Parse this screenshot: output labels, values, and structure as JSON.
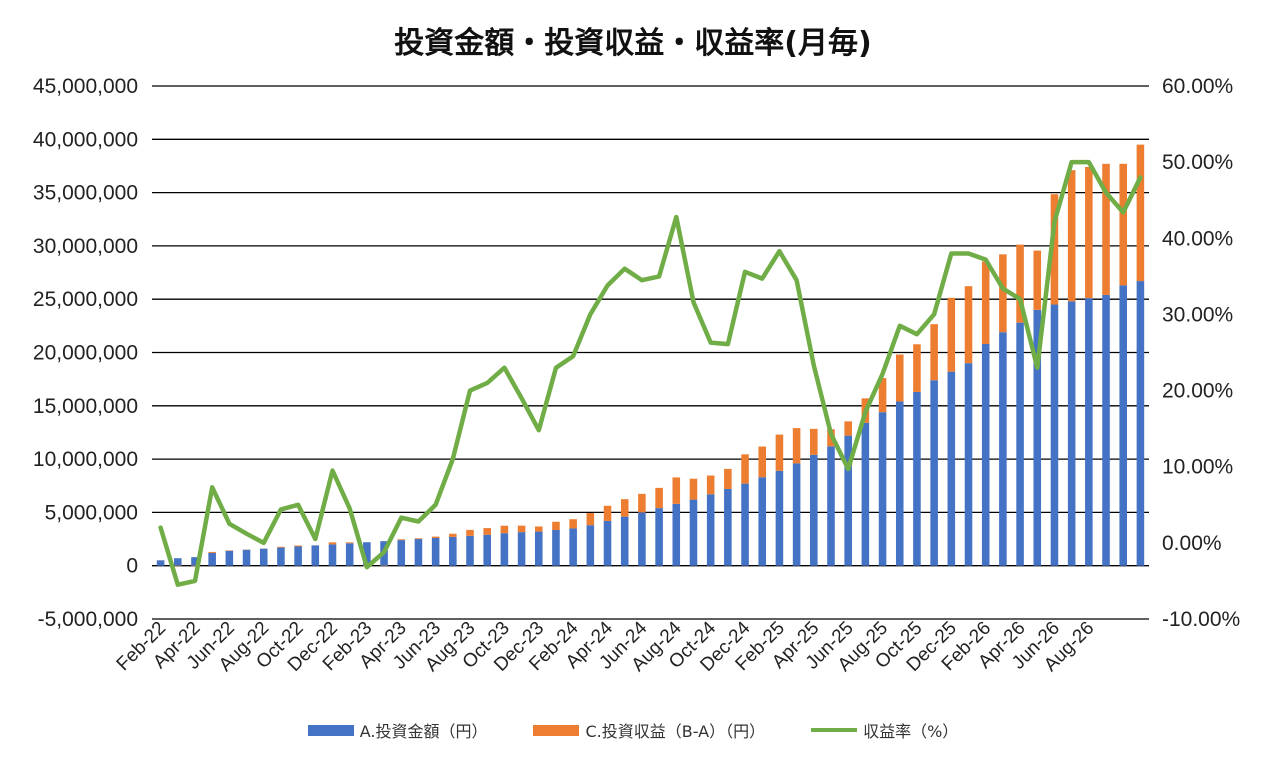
{
  "chart_data": {
    "type": "bar",
    "title": "投資金額・投資収益・収益率(月毎)",
    "categories": [
      "Feb-22",
      "Mar-22",
      "Apr-22",
      "May-22",
      "Jun-22",
      "Jul-22",
      "Aug-22",
      "Sep-22",
      "Oct-22",
      "Nov-22",
      "Dec-22",
      "Jan-23",
      "Feb-23",
      "Mar-23",
      "Apr-23",
      "May-23",
      "Jun-23",
      "Jul-23",
      "Aug-23",
      "Sep-23",
      "Oct-23",
      "Nov-23",
      "Dec-23",
      "Jan-24",
      "Feb-24",
      "Mar-24",
      "Apr-24",
      "May-24",
      "Jun-24",
      "Jul-24",
      "Aug-24",
      "Sep-24",
      "Oct-24",
      "Nov-24",
      "Dec-24",
      "Jan-25",
      "Feb-25",
      "Mar-25",
      "Apr-25",
      "May-25",
      "Jun-25",
      "Jul-25",
      "Aug-25",
      "Sep-25",
      "Oct-25",
      "Nov-25",
      "Dec-25",
      "Jan-26",
      "Feb-26",
      "Mar-26",
      "Apr-26",
      "May-26",
      "Jun-26",
      "Jul-26",
      "Aug-26",
      "Sep-26",
      "Oct-26",
      "Nov-26"
    ],
    "x_tick_labels": [
      "Feb-22",
      "Apr-22",
      "Jun-22",
      "Aug-22",
      "Oct-22",
      "Dec-22",
      "Feb-23",
      "Apr-23",
      "Jun-23",
      "Aug-23",
      "Oct-23",
      "Dec-23",
      "Feb-24",
      "Apr-24",
      "Jun-24",
      "Aug-24",
      "Oct-24",
      "Dec-24",
      "Feb-25",
      "Apr-25",
      "Jun-25",
      "Aug-25",
      "Oct-25",
      "Dec-25",
      "Feb-26",
      "Apr-26",
      "Jun-26",
      "Aug-26"
    ],
    "y_left_ticks": [
      "45,000,000",
      "40,000,000",
      "35,000,000",
      "30,000,000",
      "25,000,000",
      "20,000,000",
      "15,000,000",
      "10,000,000",
      "5,000,000",
      "0",
      "-5,000,000"
    ],
    "y_right_ticks": [
      "60.00%",
      "50.00%",
      "40.00%",
      "30.00%",
      "20.00%",
      "10.00%",
      "0.00%",
      "-10.00%"
    ],
    "ylim_left": [
      -5000000,
      45000000
    ],
    "ylim_right": [
      -0.1,
      0.6
    ],
    "grid": true,
    "legend_position": "bottom",
    "series": [
      {
        "name": "A.投資金額（円）",
        "type": "bar",
        "axis": "left",
        "color": "#4472c4",
        "stack": "s1",
        "values": [
          500000,
          700000,
          800000,
          1200000,
          1400000,
          1500000,
          1600000,
          1700000,
          1800000,
          1900000,
          2000000,
          2100000,
          2200000,
          2300000,
          2400000,
          2500000,
          2600000,
          2700000,
          2800000,
          2900000,
          3050000,
          3150000,
          3200000,
          3350000,
          3500000,
          3800000,
          4200000,
          4600000,
          5000000,
          5400000,
          5800000,
          6200000,
          6700000,
          7200000,
          7700000,
          8300000,
          8900000,
          9600000,
          10400000,
          11200000,
          12200000,
          13400000,
          14400000,
          15400000,
          16300000,
          17400000,
          18200000,
          19000000,
          20800000,
          21900000,
          22800000,
          24000000,
          24500000,
          24800000,
          25100000,
          25400000,
          26300000,
          26700000
        ]
      },
      {
        "name": "C.投資収益（B-A）（円）",
        "type": "bar",
        "axis": "left",
        "color": "#ed7d31",
        "stack": "s1",
        "values": [
          10000,
          -40000,
          -40000,
          90000,
          40000,
          20000,
          10000,
          70000,
          90000,
          10000,
          190000,
          90000,
          -70000,
          -30000,
          80000,
          70000,
          130000,
          300000,
          560000,
          630000,
          700000,
          610000,
          480000,
          770000,
          860000,
          1140000,
          1420000,
          1640000,
          1740000,
          1900000,
          2480000,
          1960000,
          1760000,
          1880000,
          2750000,
          2880000,
          3400000,
          3310000,
          2440000,
          1600000,
          1340000,
          2300000,
          3200000,
          4410000,
          4470000,
          5260000,
          6930000,
          7220000,
          7740000,
          7310000,
          7320000,
          5560000,
          10350000,
          12300000,
          12300000,
          12300000,
          11400000,
          12800000
        ]
      },
      {
        "name": "収益率（%）",
        "type": "line",
        "axis": "right",
        "color": "#70ad47",
        "values": [
          0.02,
          -0.055,
          -0.05,
          0.073,
          0.025,
          0.012,
          0.0,
          0.044,
          0.05,
          0.005,
          0.095,
          0.045,
          -0.032,
          -0.012,
          0.033,
          0.028,
          0.05,
          0.11,
          0.2,
          0.21,
          0.23,
          0.19,
          0.148,
          0.23,
          0.245,
          0.3,
          0.338,
          0.36,
          0.345,
          0.35,
          0.428,
          0.316,
          0.263,
          0.261,
          0.356,
          0.347,
          0.383,
          0.345,
          0.233,
          0.143,
          0.097,
          0.172,
          0.222,
          0.285,
          0.274,
          0.3,
          0.38,
          0.38,
          0.372,
          0.334,
          0.32,
          0.23,
          0.422,
          0.5,
          0.5,
          0.46,
          0.434,
          0.48
        ]
      }
    ]
  }
}
